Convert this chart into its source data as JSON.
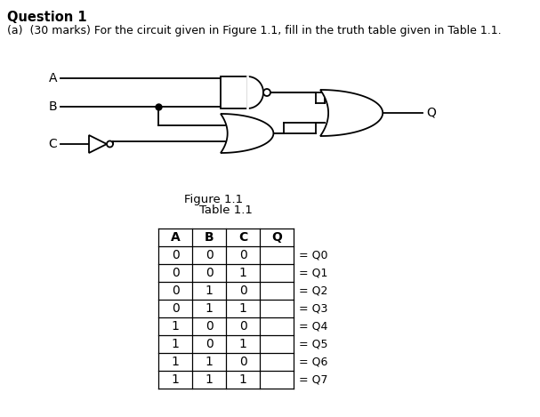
{
  "title": "Question 1",
  "subtitle": "(a)  (30 marks) For the circuit given in Figure 1.1, fill in the truth table given in Table 1.1.",
  "figure_label": "Figure 1.1",
  "table_label": "Table 1.1",
  "table_headers": [
    "A",
    "B",
    "C",
    "Q"
  ],
  "table_rows": [
    [
      0,
      0,
      0,
      ""
    ],
    [
      0,
      0,
      1,
      ""
    ],
    [
      0,
      1,
      0,
      ""
    ],
    [
      0,
      1,
      1,
      ""
    ],
    [
      1,
      0,
      0,
      ""
    ],
    [
      1,
      0,
      1,
      ""
    ],
    [
      1,
      1,
      0,
      ""
    ],
    [
      1,
      1,
      1,
      ""
    ]
  ],
  "row_labels": [
    "= Q0",
    "= Q1",
    "= Q2",
    "= Q3",
    "= Q4",
    "= Q5",
    "= Q6",
    "= Q7"
  ],
  "bg_color": "#ffffff",
  "text_color": "#000000",
  "lw": 1.3
}
